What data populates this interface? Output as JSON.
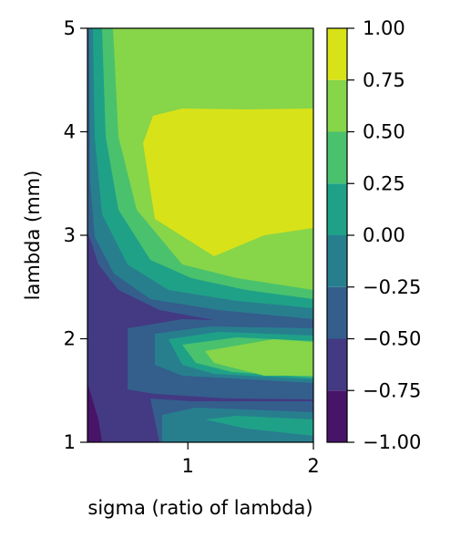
{
  "chart_data": {
    "type": "contourf",
    "title": "",
    "xlabel": "sigma (ratio of lambda)",
    "ylabel": "lambda (mm)",
    "xlim": [
      0.2,
      2.0
    ],
    "ylim": [
      1,
      5
    ],
    "xticks": [
      1,
      2
    ],
    "xtick_labels": [
      "1",
      "2"
    ],
    "yticks": [
      1,
      2,
      3,
      4,
      5
    ],
    "ytick_labels": [
      "1",
      "2",
      "3",
      "4",
      "5"
    ],
    "colormap": "viridis",
    "colorbar": {
      "range": [
        -1.0,
        1.0
      ],
      "levels": [
        -1.0,
        -0.75,
        -0.5,
        -0.25,
        0.0,
        0.25,
        0.5,
        0.75,
        1.0
      ],
      "tick_labels": [
        "−1.00",
        "−0.75",
        "−0.50",
        "−0.25",
        "0.00",
        "0.25",
        "0.50",
        "0.75",
        "1.00"
      ],
      "colors": [
        "#471468",
        "#443983",
        "#345e8c",
        "#277f8e",
        "#1fa187",
        "#4ac16d",
        "#87d549",
        "#d8e219"
      ]
    },
    "grid": false,
    "legend": "none",
    "regions": [
      {
        "level": "-1.00 to -0.75",
        "value": -0.875,
        "description": "thin strip near sigma 0.2 for lambda 1.0–1.4"
      },
      {
        "level": "-0.75 to -0.50",
        "value": -0.625,
        "description": "small sigma (0.2–0.7) for lambda 1.0–2.6"
      },
      {
        "level": "-0.50 to -0.25",
        "value": -0.375,
        "description": "bands near lambda 1.35 and 2.15 across sigma"
      },
      {
        "level": "0.75 to 1.00",
        "value": 0.875,
        "description": "plateau sigma 0.7–2.0, lambda 2.8–4.2"
      },
      {
        "level": "0.50 to 0.75",
        "value": 0.625,
        "description": "upper region lambda 4.2–5.0 and lobe lambda 1.6–2.0"
      }
    ]
  }
}
